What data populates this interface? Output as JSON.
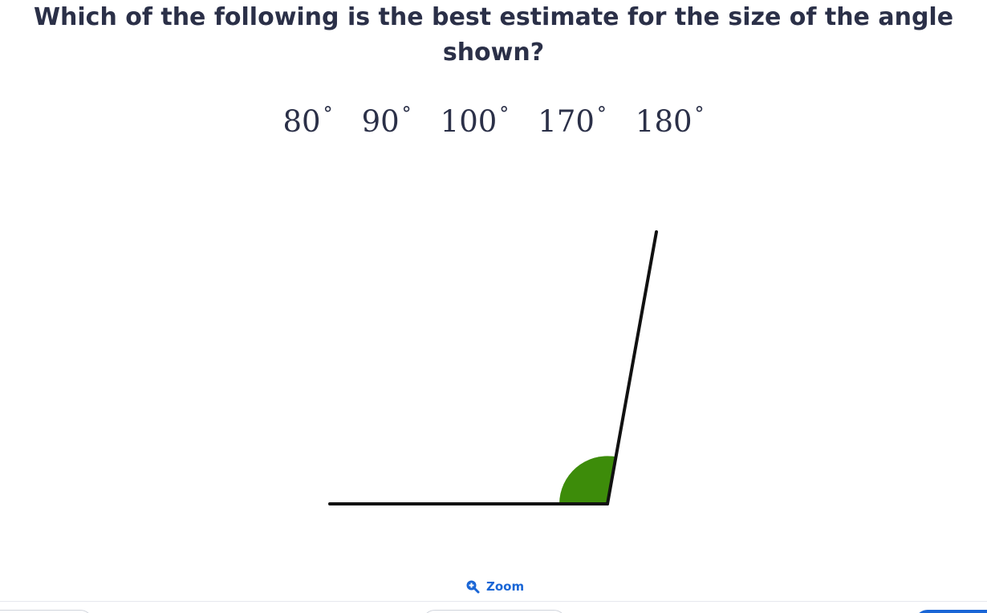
{
  "question": {
    "text": "Which of the following is the best estimate for the size of the angle shown?"
  },
  "options": [
    {
      "value": "80",
      "unit": "°"
    },
    {
      "value": "90",
      "unit": "°"
    },
    {
      "value": "100",
      "unit": "°"
    },
    {
      "value": "170",
      "unit": "°"
    },
    {
      "value": "180",
      "unit": "°"
    }
  ],
  "zoom": {
    "label": "Zoom",
    "icon": "zoom-in-icon"
  },
  "colors": {
    "text": "#2b3048",
    "angle_fill": "#3d8c0a",
    "accent": "#1a66d6",
    "line": "#111111"
  }
}
